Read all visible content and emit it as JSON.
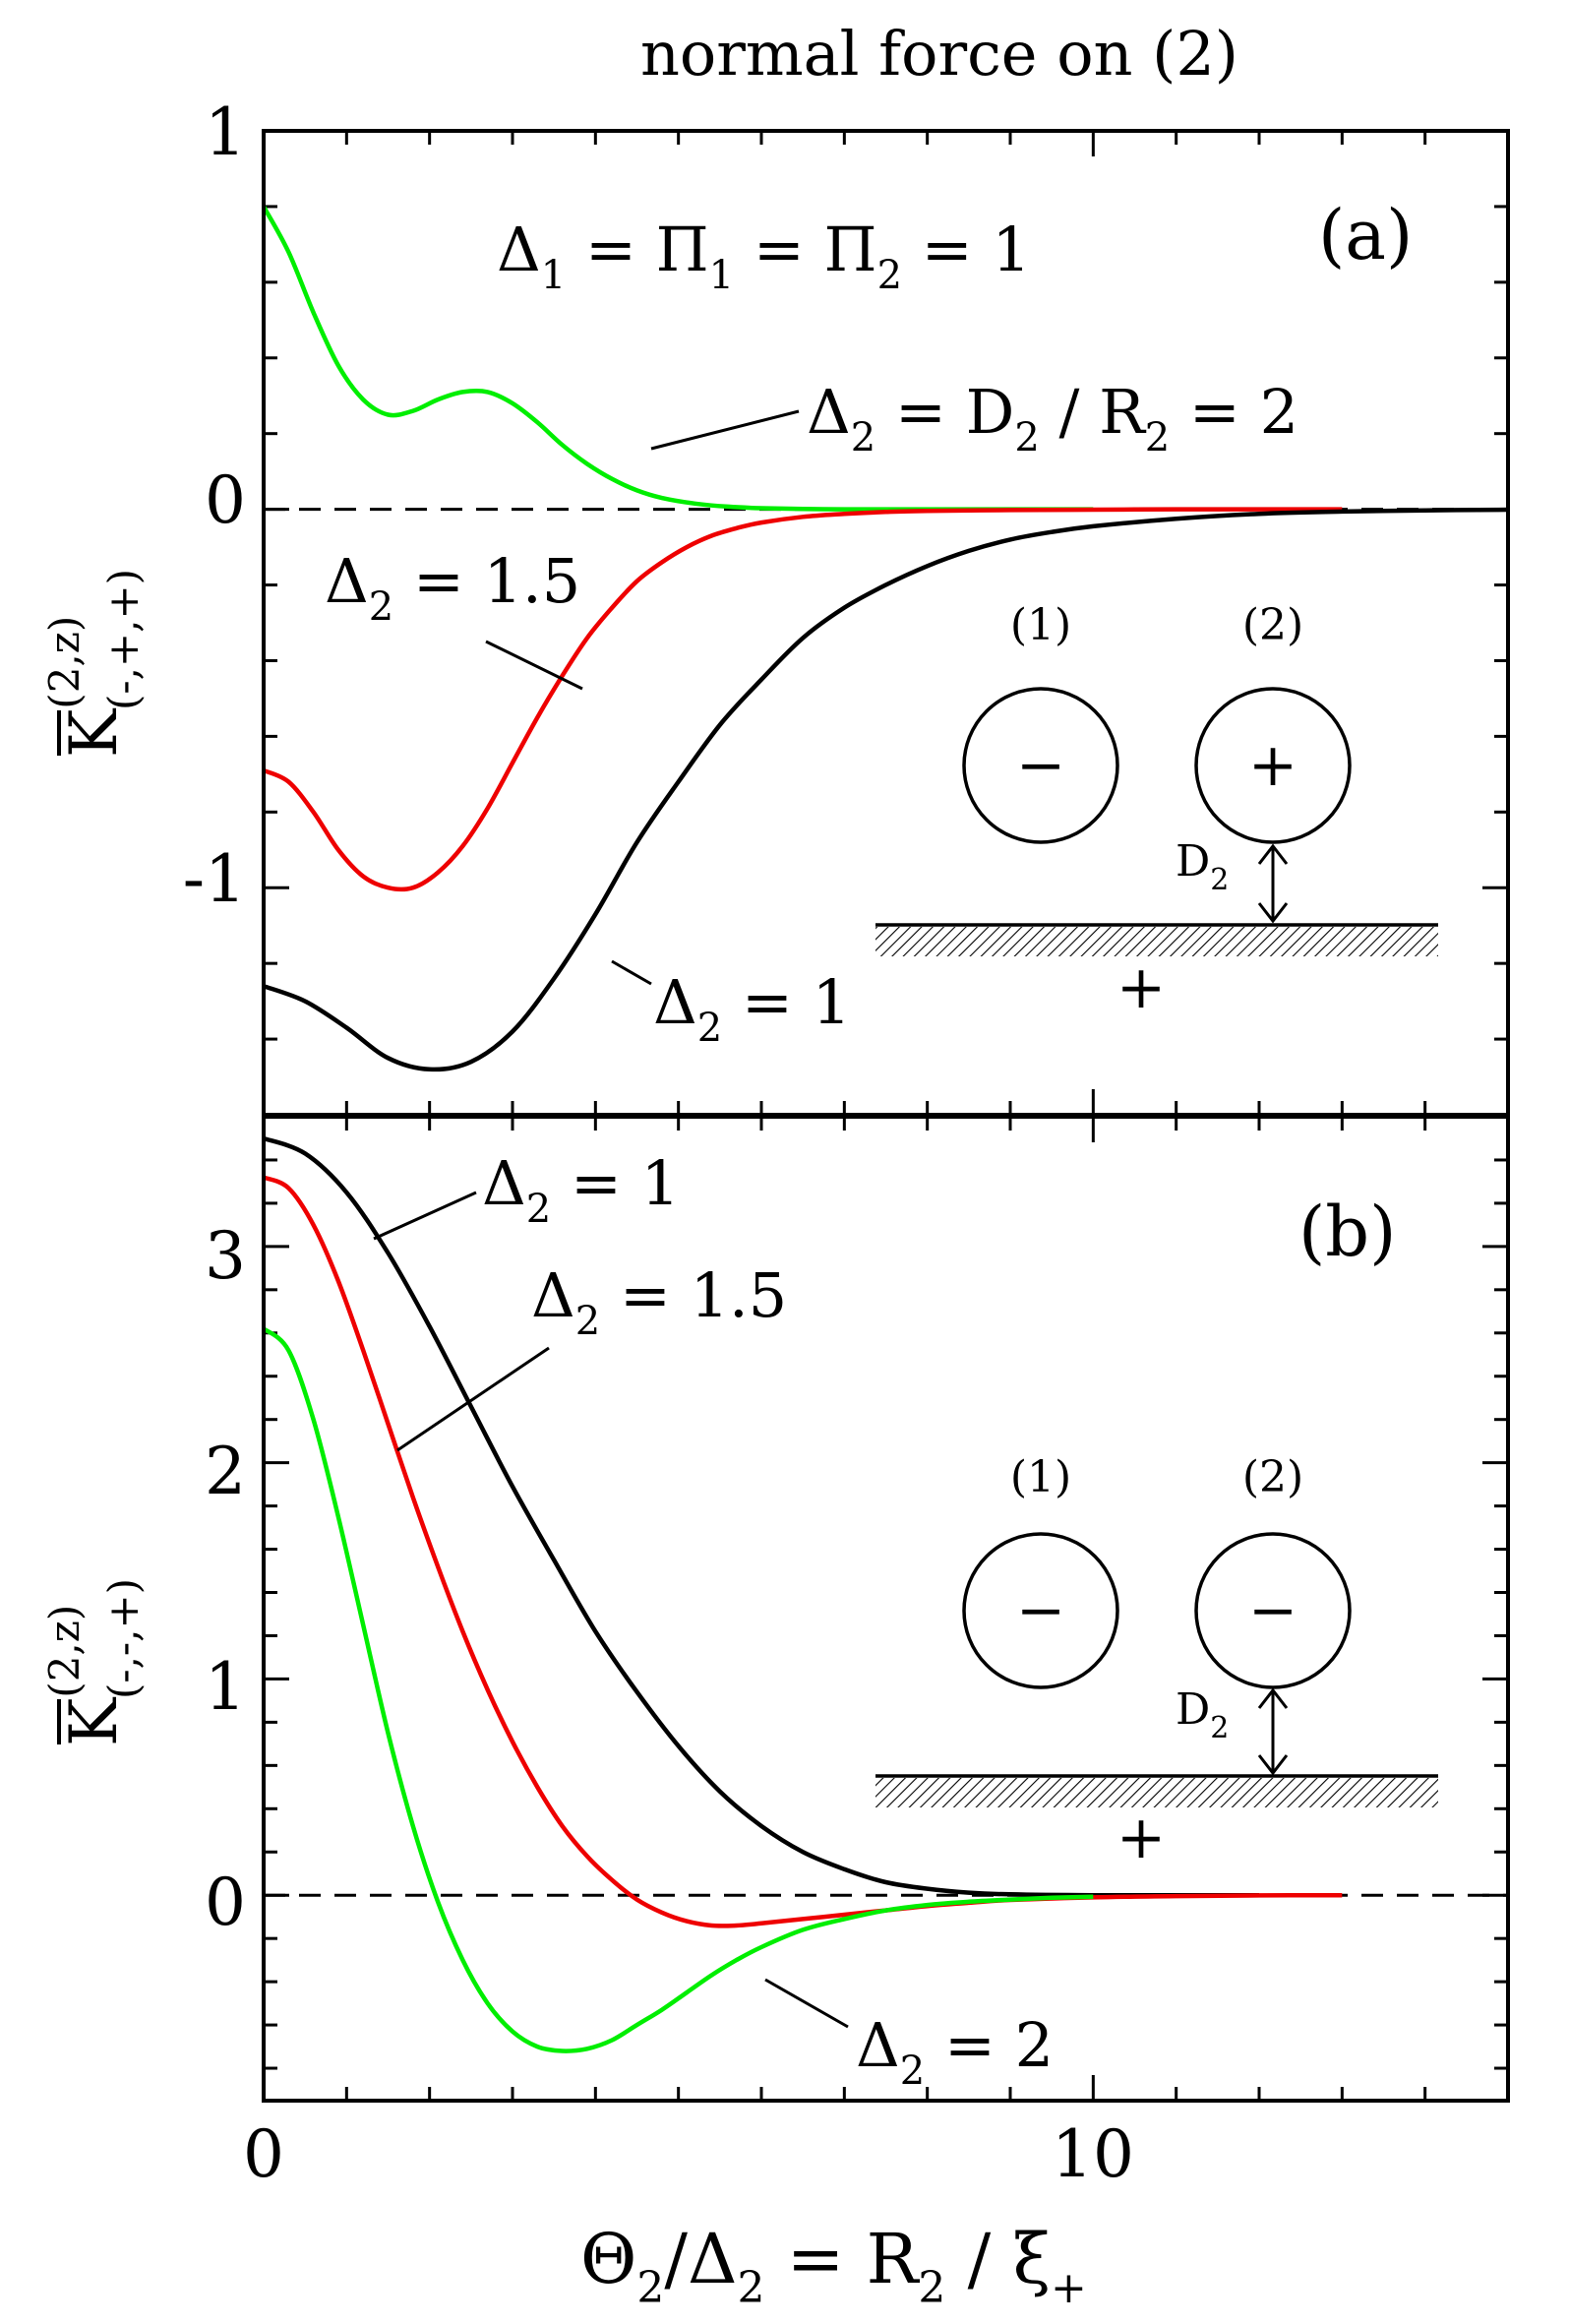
{
  "figure_title": "normal force on (2)",
  "x_axis": {
    "label_main": "Θ",
    "label_sub1": "2",
    "label_slash": "/Δ",
    "label_sub2": "2",
    "label_eq": " = R",
    "label_sub3": "2",
    "label_tail": " / ξ",
    "label_sub4": "+",
    "range": [
      0,
      15
    ],
    "ticks": [
      0,
      10
    ],
    "tick_labels": [
      "0",
      "10"
    ]
  },
  "chart_data": [
    {
      "type": "line",
      "panel_label": "(a)",
      "ylabel": {
        "main": "K",
        "sup": "(2,z)",
        "sub": "(-,+,+)"
      },
      "xlim": [
        0,
        15
      ],
      "ylim": [
        -1.6,
        1.0
      ],
      "yticks": [
        1,
        0,
        -1
      ],
      "ytick_labels": [
        "1",
        "0",
        "-1"
      ],
      "zero_line": "dashed",
      "parameter_text": {
        "d": "Δ",
        "s1": "1",
        "eq1": " = Π",
        "s2": "1",
        "eq2": " = Π",
        "s3": "2",
        "tail": " = 1"
      },
      "series": [
        {
          "name": "Δ2 = 2",
          "color": "#00ee00",
          "x": [
            0,
            0.3,
            0.6,
            0.9,
            1.2,
            1.5,
            1.8,
            2.1,
            2.4,
            2.7,
            3.0,
            3.3,
            3.6,
            3.9,
            4.2,
            4.5,
            4.8,
            5.2,
            5.6,
            6.0,
            6.5,
            7.0,
            7.5,
            8.0,
            9.0,
            10.0
          ],
          "y": [
            0.8,
            0.68,
            0.52,
            0.38,
            0.29,
            0.25,
            0.26,
            0.29,
            0.31,
            0.31,
            0.28,
            0.23,
            0.17,
            0.12,
            0.08,
            0.05,
            0.03,
            0.015,
            0.007,
            0.003,
            0.001,
            0,
            0,
            0,
            0,
            0
          ]
        },
        {
          "name": "Δ2 = 1.5",
          "color": "#ee0000",
          "x": [
            0,
            0.3,
            0.6,
            0.9,
            1.2,
            1.5,
            1.8,
            2.1,
            2.4,
            2.7,
            3.0,
            3.3,
            3.6,
            3.9,
            4.2,
            4.5,
            4.8,
            5.1,
            5.4,
            5.7,
            6.0,
            6.5,
            7.0,
            7.5,
            8.0,
            9.0,
            10.0,
            11.0,
            12.0,
            13.0
          ],
          "y": [
            -0.69,
            -0.72,
            -0.8,
            -0.9,
            -0.97,
            -1.0,
            -1.0,
            -0.96,
            -0.89,
            -0.79,
            -0.67,
            -0.55,
            -0.44,
            -0.34,
            -0.26,
            -0.19,
            -0.14,
            -0.1,
            -0.07,
            -0.05,
            -0.035,
            -0.02,
            -0.012,
            -0.007,
            -0.004,
            -0.002,
            -0.001,
            0,
            0,
            0
          ]
        },
        {
          "name": "Δ2 = 1",
          "color": "#000000",
          "x": [
            0,
            0.5,
            1.0,
            1.5,
            2.0,
            2.5,
            3.0,
            3.5,
            4.0,
            4.5,
            5.0,
            5.5,
            6.0,
            6.5,
            7.0,
            7.5,
            8.0,
            8.5,
            9.0,
            9.5,
            10.0,
            11.0,
            12.0,
            13.0,
            14.0,
            15.0
          ],
          "y": [
            -1.26,
            -1.3,
            -1.37,
            -1.45,
            -1.48,
            -1.46,
            -1.38,
            -1.24,
            -1.07,
            -0.88,
            -0.72,
            -0.57,
            -0.45,
            -0.34,
            -0.26,
            -0.2,
            -0.15,
            -0.11,
            -0.08,
            -0.06,
            -0.045,
            -0.025,
            -0.012,
            -0.006,
            -0.003,
            -0.001
          ]
        }
      ],
      "annotations": [
        {
          "lead": "Δ",
          "sub": "2",
          "tail": " = D",
          "sub2": "2",
          "tail2": " / R",
          "sub3": "2",
          "tail3": " = 2"
        },
        {
          "lead": "Δ",
          "sub": "2",
          "tail": " = 1.5"
        },
        {
          "lead": "Δ",
          "sub": "2",
          "tail": " = 1"
        }
      ],
      "inset": {
        "label1": "(1)",
        "label2": "(2)",
        "sign1": "−",
        "sign2": "+",
        "distance_main": "D",
        "distance_sub": "2",
        "wall_sign": "+"
      }
    },
    {
      "type": "line",
      "panel_label": "(b)",
      "ylabel": {
        "main": "K",
        "sup": "(2,z)",
        "sub": "(-,-,+)"
      },
      "xlim": [
        0,
        15
      ],
      "ylim": [
        -0.95,
        3.6
      ],
      "yticks": [
        3,
        2,
        1,
        0
      ],
      "ytick_labels": [
        "3",
        "2",
        "1",
        "0"
      ],
      "zero_line": "dashed",
      "series": [
        {
          "name": "Δ2 = 1",
          "color": "#000000",
          "x": [
            0,
            0.5,
            1.0,
            1.5,
            2.0,
            2.5,
            3.0,
            3.5,
            4.0,
            4.5,
            5.0,
            5.5,
            6.0,
            6.5,
            7.0,
            7.5,
            8.0,
            8.5,
            9.0,
            10.0,
            11.0,
            12.0
          ],
          "y": [
            3.5,
            3.43,
            3.25,
            2.97,
            2.63,
            2.26,
            1.89,
            1.55,
            1.22,
            0.94,
            0.69,
            0.48,
            0.32,
            0.2,
            0.12,
            0.06,
            0.03,
            0.012,
            0.004,
            0,
            0,
            0
          ]
        },
        {
          "name": "Δ2 = 1.5",
          "color": "#ee0000",
          "x": [
            0,
            0.3,
            0.6,
            0.9,
            1.2,
            1.5,
            1.8,
            2.1,
            2.4,
            2.7,
            3.0,
            3.3,
            3.6,
            3.9,
            4.2,
            4.5,
            4.8,
            5.1,
            5.4,
            5.7,
            6.0,
            6.5,
            7.0,
            7.5,
            8.0,
            8.5,
            9.0,
            10.0,
            11.0,
            12.0,
            13.0
          ],
          "y": [
            3.32,
            3.27,
            3.1,
            2.84,
            2.52,
            2.18,
            1.84,
            1.52,
            1.22,
            0.95,
            0.71,
            0.5,
            0.32,
            0.18,
            0.07,
            -0.02,
            -0.08,
            -0.12,
            -0.14,
            -0.14,
            -0.13,
            -0.11,
            -0.09,
            -0.07,
            -0.05,
            -0.035,
            -0.022,
            -0.01,
            -0.004,
            -0.001,
            0
          ]
        },
        {
          "name": "Δ2 = 2",
          "color": "#00ee00",
          "x": [
            0,
            0.3,
            0.6,
            0.9,
            1.2,
            1.5,
            1.8,
            2.1,
            2.4,
            2.7,
            3.0,
            3.3,
            3.6,
            3.9,
            4.2,
            4.5,
            4.8,
            5.1,
            5.4,
            5.7,
            6.0,
            6.5,
            7.0,
            7.5,
            8.0,
            8.5,
            9.0,
            9.5,
            10.0
          ],
          "y": [
            2.62,
            2.52,
            2.2,
            1.75,
            1.25,
            0.75,
            0.32,
            -0.03,
            -0.3,
            -0.5,
            -0.63,
            -0.7,
            -0.72,
            -0.71,
            -0.67,
            -0.6,
            -0.53,
            -0.45,
            -0.37,
            -0.3,
            -0.24,
            -0.16,
            -0.11,
            -0.07,
            -0.045,
            -0.03,
            -0.02,
            -0.012,
            -0.007
          ]
        }
      ],
      "annotations": [
        {
          "lead": "Δ",
          "sub": "2",
          "tail": " = 1"
        },
        {
          "lead": "Δ",
          "sub": "2",
          "tail": " = 1.5"
        },
        {
          "lead": "Δ",
          "sub": "2",
          "tail": " = 2"
        }
      ],
      "inset": {
        "label1": "(1)",
        "label2": "(2)",
        "sign1": "−",
        "sign2": "−",
        "distance_main": "D",
        "distance_sub": "2",
        "wall_sign": "+"
      }
    }
  ]
}
